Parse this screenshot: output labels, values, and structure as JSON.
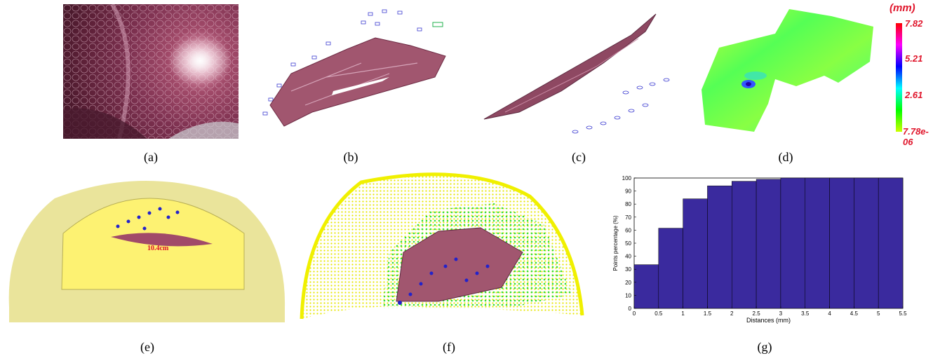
{
  "captions": {
    "a": "(a)",
    "b": "(b)",
    "c": "(c)",
    "d": "(d)",
    "e": "(e)",
    "f": "(f)",
    "g": "(g)"
  },
  "panel_e": {
    "measurement": "10.4cm"
  },
  "colorbar": {
    "unit": "(mm)",
    "ticks": [
      "7.82",
      "5.21",
      "2.61",
      "7.78e-06"
    ],
    "colors": [
      "#ff0000",
      "#ff00ff",
      "#0000ff",
      "#00ffff",
      "#00ff00",
      "#ccff00"
    ]
  },
  "chart_data": {
    "type": "bar",
    "categories": [
      "0-0.5",
      "0.5-1",
      "1-1.5",
      "1.5-2",
      "2-2.5",
      "2.5-3",
      "3-3.5",
      "3.5-4",
      "4-4.5",
      "4.5-5",
      "5-5.5"
    ],
    "values": [
      33.5,
      61.5,
      84,
      94,
      97.5,
      99,
      100,
      100,
      100,
      100,
      100
    ],
    "xlabel": "Distances (mm)",
    "ylabel": "Points percentage (%)",
    "xticks": [
      "0",
      "0.5",
      "1",
      "1.5",
      "2",
      "2.5",
      "3",
      "3.5",
      "4",
      "4.5",
      "5",
      "5.5"
    ],
    "yticks": [
      "0",
      "10",
      "20",
      "30",
      "40",
      "50",
      "60",
      "70",
      "80",
      "90",
      "100"
    ],
    "xlim": [
      0,
      5.5
    ],
    "ylim": [
      0,
      100
    ],
    "bar_color": "#3a2a9e"
  }
}
